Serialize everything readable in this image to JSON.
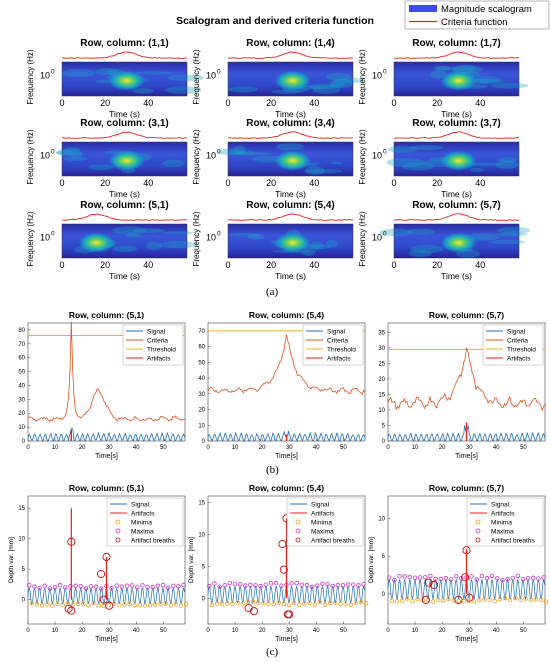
{
  "figure": {
    "panel_a": {
      "title": "Scalogram and derived criteria function",
      "legend": [
        "Magnitude scalogram",
        "Criteria function"
      ],
      "legend_colors": [
        "#3a4cf0",
        "#e8201a"
      ],
      "ylabel": "Frequency (Hz)",
      "xlabel": "Time (s)",
      "ytick": "10",
      "ytick_exp": "0",
      "xticks": [
        "0",
        "20",
        "40"
      ],
      "caption": "(a)"
    },
    "panel_b": {
      "caption": "(b)",
      "xlabel": "Time[s]"
    },
    "panel_c": {
      "caption": "(c)",
      "xlabel": "Time[s]",
      "ylabel": "Depth var. [mm]"
    }
  },
  "chart_data": [
    {
      "type": "heatmap",
      "description_series": "scalogram grid",
      "title": "Scalogram and derived criteria function",
      "subplots": [
        {
          "title": "Row, column: (1,1)",
          "peak_time": 30,
          "criteria_peak_time": 30
        },
        {
          "title": "Row, column: (1,4)",
          "peak_time": 30,
          "criteria_peak_time": 30
        },
        {
          "title": "Row, column: (1,7)",
          "peak_time": 30,
          "criteria_peak_time": 30
        },
        {
          "title": "Row, column: (3,1)",
          "peak_time": 30,
          "criteria_peak_time": 30
        },
        {
          "title": "Row, column: (3,4)",
          "peak_time": 30,
          "criteria_peak_time": 30
        },
        {
          "title": "Row, column: (3,7)",
          "peak_time": 30,
          "criteria_peak_time": 30
        },
        {
          "title": "Row, column: (5,1)",
          "peak_time": 16,
          "criteria_peak_time": 16
        },
        {
          "title": "Row, column: (5,4)",
          "peak_time": 30,
          "criteria_peak_time": 30
        },
        {
          "title": "Row, column: (5,7)",
          "peak_time": 30,
          "criteria_peak_time": 30
        }
      ],
      "xlim": [
        0,
        58
      ]
    },
    {
      "type": "line",
      "legend": [
        "Signal",
        "Criteria",
        "Threshold",
        "Artifacts"
      ],
      "colors": [
        "#1f6fb4",
        "#d9531e",
        "#edb120",
        "#e8201a"
      ],
      "xticks": [
        0,
        10,
        20,
        30,
        40,
        50
      ],
      "xlim": [
        0,
        58
      ],
      "subplots": [
        {
          "title": "Row, column: (5,1)",
          "yticks": [
            0,
            10,
            20,
            30,
            40,
            50,
            60,
            70,
            80
          ],
          "ylim": [
            0,
            85
          ],
          "threshold": 76,
          "criteria_base": 16,
          "peak_x": 16,
          "peak_y": 84,
          "second_peak_x": 26,
          "second_peak_y": 36,
          "artifact_x": 16,
          "artifact_y": 8
        },
        {
          "title": "Row, column: (5,4)",
          "yticks": [
            0,
            10,
            20,
            30,
            40,
            50,
            60,
            70
          ],
          "ylim": [
            0,
            75
          ],
          "threshold": 70,
          "criteria_base": 32,
          "peak_x": 29,
          "peak_y": 68,
          "artifact_x": 29,
          "artifact_y": 4
        },
        {
          "title": "Row, column: (5,7)",
          "yticks": [
            0,
            5,
            10,
            15,
            20,
            25,
            30,
            35
          ],
          "ylim": [
            0,
            38
          ],
          "threshold": 29.5,
          "criteria_base": 12,
          "peak_x": 29,
          "peak_y": 30,
          "artifact_x": 29,
          "artifact_y": 6
        }
      ]
    },
    {
      "type": "line",
      "legend": [
        "Signal",
        "Artifacts",
        "Minima",
        "Maxima",
        "Artifact breaths"
      ],
      "colors": [
        "#1f6fb4",
        "#e8201a",
        "#f0a020",
        "#cc33cc",
        "#c01010"
      ],
      "xticks": [
        0,
        10,
        20,
        30,
        40,
        50
      ],
      "xlim": [
        0,
        58
      ],
      "subplots": [
        {
          "title": "Row, column: (5,1)",
          "yticks": [
            0,
            5,
            10,
            15
          ],
          "ylim": [
            -4,
            17
          ],
          "spike_x": 16,
          "spike_y": 15,
          "spike2_x": 29,
          "spike2_y": 7,
          "artifact_breaths": [
            [
              16,
              9.5
            ],
            [
              15,
              -1.5
            ],
            [
              16,
              -1.8
            ],
            [
              27,
              4.2
            ],
            [
              28,
              0
            ],
            [
              29,
              7
            ],
            [
              30,
              -1
            ]
          ]
        },
        {
          "title": "Row, column: (5,4)",
          "yticks": [
            0,
            5,
            10,
            15
          ],
          "ylim": [
            -4,
            16
          ],
          "spike_x": 29,
          "spike_y": 12.5,
          "artifact_breaths": [
            [
              29,
              12.5
            ],
            [
              27.5,
              8.5
            ],
            [
              28,
              4.5
            ],
            [
              15,
              -1.5
            ],
            [
              17,
              -2
            ],
            [
              29.5,
              -2.5
            ],
            [
              30,
              -2.5
            ]
          ]
        },
        {
          "title": "Row, column: (5,7)",
          "yticks": [
            0,
            5,
            10
          ],
          "ylim": [
            -4,
            13
          ],
          "spike_x": 29,
          "spike_y": 6,
          "artifact_breaths": [
            [
              29,
              5.8
            ],
            [
              28.5,
              2.2
            ],
            [
              15,
              1.5
            ],
            [
              17,
              1.2
            ],
            [
              14,
              -0.8
            ],
            [
              26,
              -0.8
            ],
            [
              30,
              -0.5
            ]
          ]
        }
      ]
    }
  ]
}
